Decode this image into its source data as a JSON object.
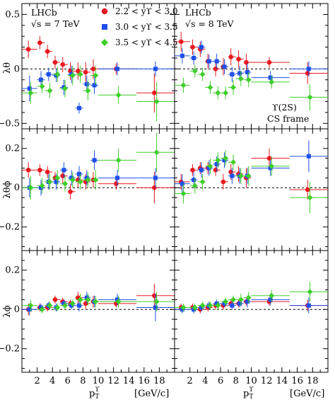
{
  "chart_data": {
    "type": "scatter",
    "top_labels": {
      "left": [
        "LHCb",
        "√s = 7 TeV"
      ],
      "right": [
        "LHCb",
        "√s = 8 TeV"
      ]
    },
    "state_label": [
      "ϒ(2S)",
      "CS frame"
    ],
    "xlabel_main": "p",
    "xlabel_sub": "T",
    "xlabel_sup": "ϒ",
    "xunit": "[GeV/c]",
    "rows": [
      {
        "ylabel": "λθ",
        "ylim": [
          -0.55,
          0.6
        ],
        "yticks": [
          -0.5,
          0,
          0.5
        ],
        "ytick_labels": [
          "−0.5",
          "0",
          "0.5"
        ]
      },
      {
        "ylabel": "λθϕ",
        "ylim": [
          -0.32,
          0.3
        ],
        "yticks": [
          -0.2,
          0,
          0.2
        ],
        "ytick_labels": [
          "−0.2",
          "0",
          "0.2"
        ]
      },
      {
        "ylabel": "λϕ",
        "ylim": [
          -0.32,
          0.3
        ],
        "yticks": [
          -0.2,
          0,
          0.2
        ],
        "ytick_labels": [
          "−0.2",
          "0",
          "0.2"
        ]
      }
    ],
    "xlim": [
      0,
      20
    ],
    "xticks": [
      2,
      4,
      6,
      8,
      10,
      12,
      14,
      16,
      18
    ],
    "xtick_labels": [
      "2",
      "4",
      "6",
      "8",
      "10",
      "12",
      "14",
      "16",
      "18"
    ],
    "series": [
      {
        "name": "2.2 < yϒ < 3.0",
        "color": "#e8191f",
        "marker": "circle"
      },
      {
        "name": "3.0 < yϒ < 3.5",
        "color": "#1f4fe8",
        "marker": "square"
      },
      {
        "name": "3.5 < yϒ < 4.5",
        "color": "#3ecf2a",
        "marker": "diamond"
      }
    ],
    "bins": [
      [
        0,
        2
      ],
      [
        2,
        3
      ],
      [
        3,
        4
      ],
      [
        4,
        5
      ],
      [
        5,
        6
      ],
      [
        6,
        7
      ],
      [
        7,
        8
      ],
      [
        8,
        9
      ],
      [
        9,
        10
      ],
      [
        10,
        15
      ],
      [
        15,
        20
      ]
    ],
    "panels": [
      [
        [
          [
            0.18,
            0.08
          ],
          [
            0.24,
            0.06
          ],
          [
            0.16,
            0.06
          ],
          [
            0.06,
            0.06
          ],
          [
            0.04,
            0.07
          ],
          [
            -0.02,
            0.08
          ],
          [
            -0.02,
            0.08
          ],
          [
            -0.03,
            0.09
          ],
          [
            0.0,
            0.09
          ],
          [
            0.0,
            0.05
          ],
          [
            -0.22,
            0.18
          ]
        ],
        [
          [
            -0.18,
            0.12
          ],
          [
            -0.1,
            0.08
          ],
          [
            -0.05,
            0.06
          ],
          [
            -0.06,
            0.06
          ],
          [
            -0.17,
            0.07
          ],
          [
            -0.05,
            0.08
          ],
          [
            -0.36,
            0.05
          ],
          [
            -0.14,
            0.08
          ],
          [
            -0.15,
            0.08
          ],
          [
            0.0,
            0.06
          ],
          [
            0.0,
            0.07
          ]
        ],
        [
          [
            -0.22,
            0.1
          ],
          [
            -0.16,
            0.06
          ],
          [
            -0.2,
            0.07
          ],
          [
            -0.05,
            0.07
          ],
          [
            -0.18,
            0.08
          ],
          [
            -0.06,
            0.09
          ],
          [
            -0.05,
            0.08
          ],
          [
            -0.2,
            0.09
          ],
          [
            -0.06,
            0.09
          ],
          [
            -0.24,
            0.08
          ],
          [
            -0.3,
            0.18
          ]
        ]
      ],
      [
        [
          [
            0.25,
            0.09
          ],
          [
            0.2,
            0.07
          ],
          [
            0.18,
            0.07
          ],
          [
            0.07,
            0.07
          ],
          [
            0.0,
            0.07
          ],
          [
            0.02,
            0.08
          ],
          [
            0.11,
            0.08
          ],
          [
            0.09,
            0.08
          ],
          [
            0.06,
            0.08
          ],
          [
            0.06,
            0.05
          ],
          [
            -0.04,
            0.1
          ]
        ],
        [
          [
            0.12,
            0.07
          ],
          [
            0.1,
            0.06
          ],
          [
            0.2,
            0.06
          ],
          [
            0.07,
            0.06
          ],
          [
            0.07,
            0.07
          ],
          [
            0.02,
            0.07
          ],
          [
            -0.05,
            0.07
          ],
          [
            -0.04,
            0.07
          ],
          [
            -0.03,
            0.08
          ],
          [
            -0.08,
            0.06
          ],
          [
            0.0,
            0.07
          ]
        ],
        [
          [
            -0.15,
            0.07
          ],
          [
            -0.02,
            0.06
          ],
          [
            -0.05,
            0.06
          ],
          [
            -0.17,
            0.06
          ],
          [
            -0.22,
            0.06
          ],
          [
            -0.22,
            0.06
          ],
          [
            -0.17,
            0.07
          ],
          [
            -0.09,
            0.07
          ],
          [
            -0.1,
            0.07
          ],
          [
            -0.12,
            0.06
          ],
          [
            -0.26,
            0.12
          ]
        ]
      ],
      [
        [
          [
            0.09,
            0.04
          ],
          [
            0.09,
            0.03
          ],
          [
            0.08,
            0.03
          ],
          [
            0.05,
            0.03
          ],
          [
            0.06,
            0.04
          ],
          [
            -0.02,
            0.04
          ],
          [
            0.04,
            0.04
          ],
          [
            0.03,
            0.04
          ],
          [
            0.04,
            0.04
          ],
          [
            0.02,
            0.03
          ],
          [
            0.0,
            0.08
          ]
        ],
        [
          [
            0.0,
            0.05
          ],
          [
            0.0,
            0.04
          ],
          [
            0.03,
            0.04
          ],
          [
            0.03,
            0.04
          ],
          [
            0.09,
            0.04
          ],
          [
            0.05,
            0.04
          ],
          [
            0.07,
            0.04
          ],
          [
            0.05,
            0.04
          ],
          [
            0.14,
            0.05
          ],
          [
            0.05,
            0.04
          ],
          [
            0.05,
            0.05
          ]
        ],
        [
          [
            0.0,
            0.06
          ],
          [
            0.01,
            0.04
          ],
          [
            0.03,
            0.04
          ],
          [
            0.05,
            0.04
          ],
          [
            0.02,
            0.04
          ],
          [
            0.04,
            0.04
          ],
          [
            0.03,
            0.04
          ],
          [
            0.04,
            0.04
          ],
          [
            0.04,
            0.05
          ],
          [
            0.14,
            0.06
          ],
          [
            0.18,
            0.1
          ]
        ]
      ],
      [
        [
          [
            0.03,
            0.04
          ],
          [
            0.09,
            0.03
          ],
          [
            0.1,
            0.03
          ],
          [
            0.1,
            0.03
          ],
          [
            0.09,
            0.03
          ],
          [
            0.03,
            0.04
          ],
          [
            0.08,
            0.04
          ],
          [
            0.07,
            0.04
          ],
          [
            0.05,
            0.05
          ],
          [
            0.15,
            0.05
          ],
          [
            -0.01,
            0.05
          ]
        ],
        [
          [
            0.02,
            0.05
          ],
          [
            0.04,
            0.04
          ],
          [
            0.09,
            0.04
          ],
          [
            0.1,
            0.04
          ],
          [
            0.12,
            0.04
          ],
          [
            0.14,
            0.04
          ],
          [
            0.06,
            0.04
          ],
          [
            0.06,
            0.04
          ],
          [
            0.06,
            0.04
          ],
          [
            0.1,
            0.04
          ],
          [
            0.16,
            0.08
          ]
        ],
        [
          [
            -0.03,
            0.05
          ],
          [
            0.01,
            0.04
          ],
          [
            0.03,
            0.04
          ],
          [
            0.11,
            0.04
          ],
          [
            0.14,
            0.04
          ],
          [
            0.15,
            0.04
          ],
          [
            0.13,
            0.04
          ],
          [
            0.06,
            0.04
          ],
          [
            0.06,
            0.05
          ],
          [
            0.11,
            0.05
          ],
          [
            -0.05,
            0.08
          ]
        ]
      ],
      [
        [
          [
            0.0,
            0.03
          ],
          [
            0.01,
            0.02
          ],
          [
            0.01,
            0.02
          ],
          [
            0.05,
            0.02
          ],
          [
            0.04,
            0.02
          ],
          [
            0.03,
            0.02
          ],
          [
            0.06,
            0.03
          ],
          [
            0.03,
            0.03
          ],
          [
            0.04,
            0.03
          ],
          [
            0.03,
            0.02
          ],
          [
            0.07,
            0.06
          ]
        ],
        [
          [
            0.0,
            0.03
          ],
          [
            0.01,
            0.02
          ],
          [
            0.02,
            0.02
          ],
          [
            0.01,
            0.02
          ],
          [
            0.03,
            0.02
          ],
          [
            0.02,
            0.02
          ],
          [
            0.02,
            0.03
          ],
          [
            0.06,
            0.03
          ],
          [
            0.04,
            0.03
          ],
          [
            0.05,
            0.03
          ],
          [
            0.01,
            0.07
          ]
        ],
        [
          [
            0.02,
            0.03
          ],
          [
            0.0,
            0.02
          ],
          [
            0.02,
            0.02
          ],
          [
            0.01,
            0.02
          ],
          [
            0.02,
            0.02
          ],
          [
            0.03,
            0.02
          ],
          [
            0.05,
            0.03
          ],
          [
            0.05,
            0.03
          ],
          [
            0.04,
            0.03
          ],
          [
            0.04,
            0.03
          ],
          [
            0.04,
            0.05
          ]
        ]
      ],
      [
        [
          [
            0.01,
            0.02
          ],
          [
            0.01,
            0.02
          ],
          [
            0.0,
            0.02
          ],
          [
            0.01,
            0.02
          ],
          [
            0.02,
            0.02
          ],
          [
            0.02,
            0.02
          ],
          [
            0.03,
            0.02
          ],
          [
            0.03,
            0.02
          ],
          [
            0.04,
            0.02
          ],
          [
            0.04,
            0.02
          ],
          [
            0.02,
            0.03
          ]
        ],
        [
          [
            0.0,
            0.02
          ],
          [
            0.0,
            0.02
          ],
          [
            0.01,
            0.02
          ],
          [
            0.02,
            0.02
          ],
          [
            0.03,
            0.02
          ],
          [
            0.03,
            0.02
          ],
          [
            0.02,
            0.02
          ],
          [
            0.03,
            0.02
          ],
          [
            0.04,
            0.03
          ],
          [
            0.05,
            0.03
          ],
          [
            0.02,
            0.04
          ]
        ],
        [
          [
            0.01,
            0.02
          ],
          [
            0.01,
            0.02
          ],
          [
            0.02,
            0.02
          ],
          [
            0.02,
            0.02
          ],
          [
            0.02,
            0.02
          ],
          [
            0.04,
            0.02
          ],
          [
            0.05,
            0.02
          ],
          [
            0.05,
            0.03
          ],
          [
            0.06,
            0.03
          ],
          [
            0.07,
            0.03
          ],
          [
            0.09,
            0.05
          ]
        ]
      ]
    ]
  }
}
